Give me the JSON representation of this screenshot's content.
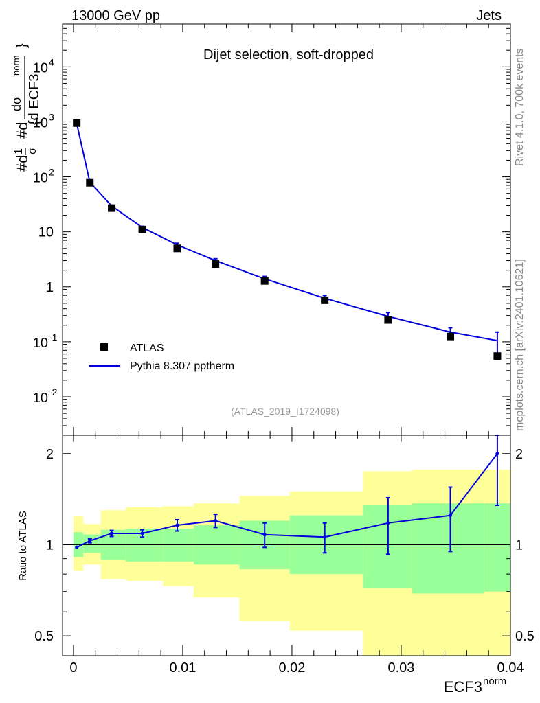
{
  "header": {
    "left": "13000 GeV pp",
    "right": "Jets"
  },
  "side": {
    "rivet": "Rivet 4.1.0,  700k events",
    "site": "mcplots.cern.ch [arXiv:2401.10621]"
  },
  "chart_data": {
    "type": "line",
    "title": "Dijet selection, soft-dropped",
    "analysis": "(ATLAS_2019_I1724098)",
    "xlabel": "ECF3",
    "xlabel_sup": "norm",
    "ylabel_top": "#d1/σ #d dσ/{d ECF3 norm}",
    "ylabel_bottom": "Ratio to ATLAS",
    "xlim": [
      -0.001,
      0.04
    ],
    "ylim_top": [
      0.002,
      60000
    ],
    "ylim_bottom": [
      0.43,
      2.3
    ],
    "x_ticks": [
      {
        "v": 0,
        "label": "0"
      },
      {
        "v": 0.01,
        "label": "0.01"
      },
      {
        "v": 0.02,
        "label": "0.02"
      },
      {
        "v": 0.03,
        "label": "0.03"
      },
      {
        "v": 0.04,
        "label": "0.04"
      }
    ],
    "y_ticks_top": [
      {
        "v": 0.01,
        "base": "10",
        "exp": "-2"
      },
      {
        "v": 0.1,
        "base": "10",
        "exp": "-1"
      },
      {
        "v": 1,
        "base": "1",
        "exp": ""
      },
      {
        "v": 10,
        "base": "10",
        "exp": ""
      },
      {
        "v": 100,
        "base": "10",
        "exp": "2"
      },
      {
        "v": 1000,
        "base": "10",
        "exp": "3"
      },
      {
        "v": 10000,
        "base": "10",
        "exp": "4"
      }
    ],
    "y_ticks_bottom": [
      {
        "v": 0.5,
        "label": "0.5"
      },
      {
        "v": 1,
        "label": "1"
      },
      {
        "v": 2,
        "label": "2"
      }
    ],
    "legend": {
      "data": "ATLAS",
      "mc": "Pythia 8.307 pptherm",
      "position": "bottom-left"
    },
    "colors": {
      "mc": "#0000dd",
      "data": "#000000",
      "band_inner": "#99ff99",
      "band_outer": "#ffff99"
    },
    "data_points": [
      {
        "x": 0.0003,
        "y": 950
      },
      {
        "x": 0.0015,
        "y": 78
      },
      {
        "x": 0.0035,
        "y": 27
      },
      {
        "x": 0.0063,
        "y": 11
      },
      {
        "x": 0.0095,
        "y": 5
      },
      {
        "x": 0.013,
        "y": 2.6
      },
      {
        "x": 0.0175,
        "y": 1.28
      },
      {
        "x": 0.023,
        "y": 0.57
      },
      {
        "x": 0.0288,
        "y": 0.25
      },
      {
        "x": 0.0345,
        "y": 0.125
      },
      {
        "x": 0.0388,
        "y": 0.055
      }
    ],
    "mc": [
      {
        "x": 0.0003,
        "y": 930,
        "err": 0
      },
      {
        "x": 0.0015,
        "y": 80,
        "err": 0
      },
      {
        "x": 0.0035,
        "y": 29.5,
        "err": 0
      },
      {
        "x": 0.0063,
        "y": 12,
        "err": 0.6
      },
      {
        "x": 0.0095,
        "y": 5.8,
        "err": 0.4
      },
      {
        "x": 0.013,
        "y": 3.0,
        "err": 0.25
      },
      {
        "x": 0.0175,
        "y": 1.4,
        "err": 0.15
      },
      {
        "x": 0.023,
        "y": 0.62,
        "err": 0.08
      },
      {
        "x": 0.0288,
        "y": 0.29,
        "err": 0.05
      },
      {
        "x": 0.0345,
        "y": 0.15,
        "err": 0.03
      },
      {
        "x": 0.0388,
        "y": 0.105,
        "err": 0.045
      }
    ],
    "ratio": [
      {
        "x": 0.0003,
        "y": 0.98,
        "err": 0
      },
      {
        "x": 0.0015,
        "y": 1.03,
        "err": 0.015
      },
      {
        "x": 0.0035,
        "y": 1.09,
        "err": 0.025
      },
      {
        "x": 0.0063,
        "y": 1.09,
        "err": 0.03
      },
      {
        "x": 0.0095,
        "y": 1.16,
        "err": 0.05
      },
      {
        "x": 0.013,
        "y": 1.2,
        "err": 0.06
      },
      {
        "x": 0.0175,
        "y": 1.08,
        "err": 0.1
      },
      {
        "x": 0.023,
        "y": 1.06,
        "err": 0.12
      },
      {
        "x": 0.0288,
        "y": 1.18,
        "err": 0.25
      },
      {
        "x": 0.0345,
        "y": 1.25,
        "err": 0.3
      },
      {
        "x": 0.0388,
        "y": 2.0,
        "err": 0.65
      }
    ],
    "bands": [
      {
        "x0": 0.0,
        "x1": 0.0009,
        "inner": [
          0.91,
          1.1
        ],
        "outer": [
          0.82,
          1.24
        ]
      },
      {
        "x0": 0.0009,
        "x1": 0.0025,
        "inner": [
          0.94,
          1.08
        ],
        "outer": [
          0.86,
          1.17
        ]
      },
      {
        "x0": 0.0025,
        "x1": 0.0048,
        "inner": [
          0.89,
          1.12
        ],
        "outer": [
          0.77,
          1.3
        ]
      },
      {
        "x0": 0.0048,
        "x1": 0.0082,
        "inner": [
          0.88,
          1.13
        ],
        "outer": [
          0.76,
          1.33
        ]
      },
      {
        "x0": 0.0082,
        "x1": 0.011,
        "inner": [
          0.88,
          1.13
        ],
        "outer": [
          0.73,
          1.34
        ]
      },
      {
        "x0": 0.011,
        "x1": 0.0152,
        "inner": [
          0.86,
          1.16
        ],
        "outer": [
          0.67,
          1.37
        ]
      },
      {
        "x0": 0.0152,
        "x1": 0.0198,
        "inner": [
          0.83,
          1.2
        ],
        "outer": [
          0.56,
          1.45
        ]
      },
      {
        "x0": 0.0198,
        "x1": 0.0265,
        "inner": [
          0.8,
          1.25
        ],
        "outer": [
          0.52,
          1.5
        ]
      },
      {
        "x0": 0.0265,
        "x1": 0.031,
        "inner": [
          0.72,
          1.35
        ],
        "outer": [
          0.3,
          1.75
        ]
      },
      {
        "x0": 0.031,
        "x1": 0.0376,
        "inner": [
          0.69,
          1.37
        ],
        "outer": [
          0.3,
          1.77
        ]
      },
      {
        "x0": 0.0376,
        "x1": 0.04,
        "inner": [
          0.7,
          1.37
        ],
        "outer": [
          0.3,
          1.77
        ]
      }
    ]
  }
}
